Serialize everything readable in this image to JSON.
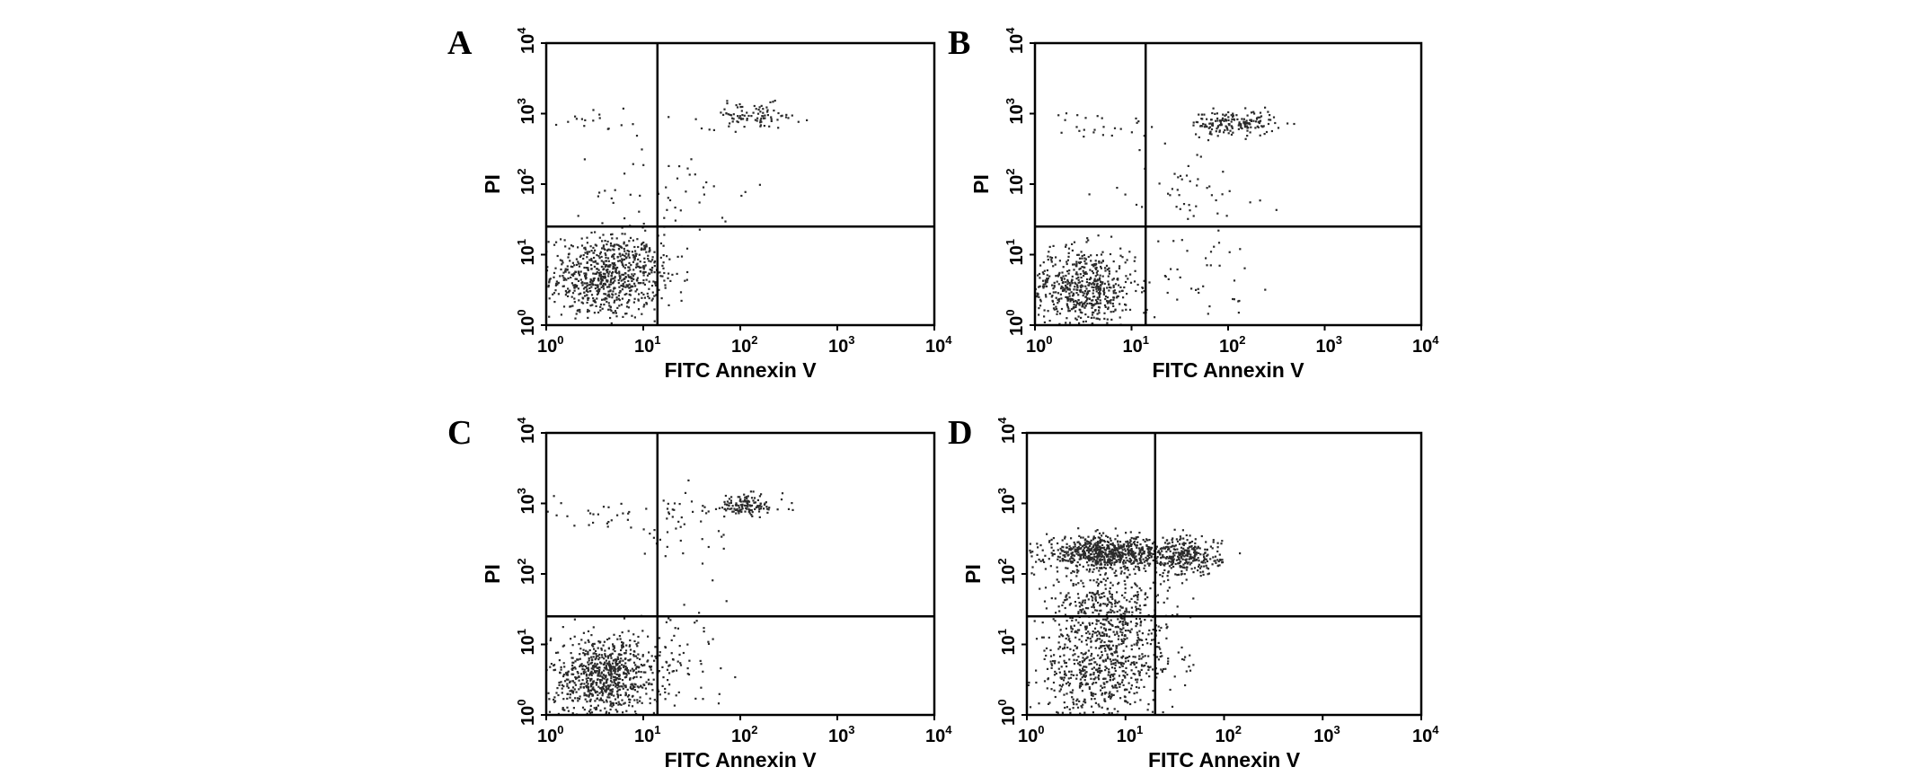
{
  "chart_data": [
    {
      "panel": "A",
      "type": "scatter",
      "xlabel": "FITC Annexin V",
      "ylabel": "PI",
      "x_scale": "log",
      "y_scale": "log",
      "xlim": [
        1,
        10000
      ],
      "ylim": [
        1,
        10000
      ],
      "x_ticks": [
        {
          "base": "10",
          "exp": "0"
        },
        {
          "base": "10",
          "exp": "1"
        },
        {
          "base": "10",
          "exp": "2"
        },
        {
          "base": "10",
          "exp": "3"
        },
        {
          "base": "10",
          "exp": "4"
        }
      ],
      "y_ticks": [
        {
          "base": "10",
          "exp": "0"
        },
        {
          "base": "10",
          "exp": "1"
        },
        {
          "base": "10",
          "exp": "2"
        },
        {
          "base": "10",
          "exp": "3"
        },
        {
          "base": "10",
          "exp": "4"
        }
      ],
      "gate_x": 14,
      "gate_y": 25,
      "clusters": [
        {
          "x": 4,
          "y": 5,
          "sx": 0.28,
          "sy": 0.3,
          "n": 700
        },
        {
          "x": 130,
          "y": 950,
          "sx": 0.25,
          "sy": 0.09,
          "n": 90
        },
        {
          "x": 10,
          "y": 6,
          "sx": 0.2,
          "sy": 0.3,
          "n": 70
        },
        {
          "x": 3,
          "y": 800,
          "sx": 0.35,
          "sy": 0.1,
          "n": 20
        },
        {
          "x": 20,
          "y": 80,
          "sx": 0.4,
          "sy": 0.35,
          "n": 50
        }
      ]
    },
    {
      "panel": "B",
      "type": "scatter",
      "xlabel": "FITC Annexin V",
      "ylabel": "PI",
      "x_scale": "log",
      "y_scale": "log",
      "xlim": [
        1,
        10000
      ],
      "ylim": [
        1,
        10000
      ],
      "x_ticks": [
        {
          "base": "10",
          "exp": "0"
        },
        {
          "base": "10",
          "exp": "1"
        },
        {
          "base": "10",
          "exp": "2"
        },
        {
          "base": "10",
          "exp": "3"
        },
        {
          "base": "10",
          "exp": "4"
        }
      ],
      "y_ticks": [
        {
          "base": "10",
          "exp": "0"
        },
        {
          "base": "10",
          "exp": "1"
        },
        {
          "base": "10",
          "exp": "2"
        },
        {
          "base": "10",
          "exp": "3"
        },
        {
          "base": "10",
          "exp": "4"
        }
      ],
      "gate_x": 14,
      "gate_y": 25,
      "clusters": [
        {
          "x": 3,
          "y": 3.5,
          "sx": 0.28,
          "sy": 0.28,
          "n": 600
        },
        {
          "x": 110,
          "y": 750,
          "sx": 0.22,
          "sy": 0.09,
          "n": 170
        },
        {
          "x": 40,
          "y": 90,
          "sx": 0.35,
          "sy": 0.35,
          "n": 50
        },
        {
          "x": 4,
          "y": 700,
          "sx": 0.3,
          "sy": 0.1,
          "n": 25
        },
        {
          "x": 40,
          "y": 5,
          "sx": 0.35,
          "sy": 0.3,
          "n": 40
        }
      ]
    },
    {
      "panel": "C",
      "type": "scatter",
      "xlabel": "FITC Annexin V",
      "ylabel": "PI",
      "x_scale": "log",
      "y_scale": "log",
      "xlim": [
        1,
        10000
      ],
      "ylim": [
        1,
        10000
      ],
      "x_ticks": [
        {
          "base": "10",
          "exp": "0"
        },
        {
          "base": "10",
          "exp": "1"
        },
        {
          "base": "10",
          "exp": "2"
        },
        {
          "base": "10",
          "exp": "3"
        },
        {
          "base": "10",
          "exp": "4"
        }
      ],
      "y_ticks": [
        {
          "base": "10",
          "exp": "0"
        },
        {
          "base": "10",
          "exp": "1"
        },
        {
          "base": "10",
          "exp": "2"
        },
        {
          "base": "10",
          "exp": "3"
        },
        {
          "base": "10",
          "exp": "4"
        }
      ],
      "gate_x": 14,
      "gate_y": 25,
      "clusters": [
        {
          "x": 4,
          "y": 3.5,
          "sx": 0.28,
          "sy": 0.3,
          "n": 800
        },
        {
          "x": 110,
          "y": 950,
          "sx": 0.2,
          "sy": 0.08,
          "n": 130
        },
        {
          "x": 25,
          "y": 500,
          "sx": 0.35,
          "sy": 0.25,
          "n": 50
        },
        {
          "x": 3,
          "y": 800,
          "sx": 0.35,
          "sy": 0.1,
          "n": 25
        },
        {
          "x": 20,
          "y": 6,
          "sx": 0.3,
          "sy": 0.3,
          "n": 60
        }
      ]
    },
    {
      "panel": "D",
      "type": "scatter",
      "xlabel": "FITC Annexin V",
      "ylabel": "PI",
      "x_scale": "log",
      "y_scale": "log",
      "xlim": [
        1,
        10000
      ],
      "ylim": [
        1,
        10000
      ],
      "x_ticks": [
        {
          "base": "10",
          "exp": "0"
        },
        {
          "base": "10",
          "exp": "1"
        },
        {
          "base": "10",
          "exp": "2"
        },
        {
          "base": "10",
          "exp": "3"
        },
        {
          "base": "10",
          "exp": "4"
        }
      ],
      "y_ticks": [
        {
          "base": "10",
          "exp": "0"
        },
        {
          "base": "10",
          "exp": "1"
        },
        {
          "base": "10",
          "exp": "2"
        },
        {
          "base": "10",
          "exp": "3"
        },
        {
          "base": "10",
          "exp": "4"
        }
      ],
      "gate_x": 20,
      "gate_y": 25,
      "clusters": [
        {
          "x": 6,
          "y": 200,
          "sx": 0.3,
          "sy": 0.12,
          "n": 700
        },
        {
          "x": 40,
          "y": 180,
          "sx": 0.18,
          "sy": 0.14,
          "n": 300
        },
        {
          "x": 5,
          "y": 4,
          "sx": 0.3,
          "sy": 0.35,
          "n": 500
        },
        {
          "x": 6,
          "y": 30,
          "sx": 0.3,
          "sy": 0.3,
          "n": 400
        },
        {
          "x": 15,
          "y": 8,
          "sx": 0.25,
          "sy": 0.35,
          "n": 100
        }
      ]
    }
  ]
}
